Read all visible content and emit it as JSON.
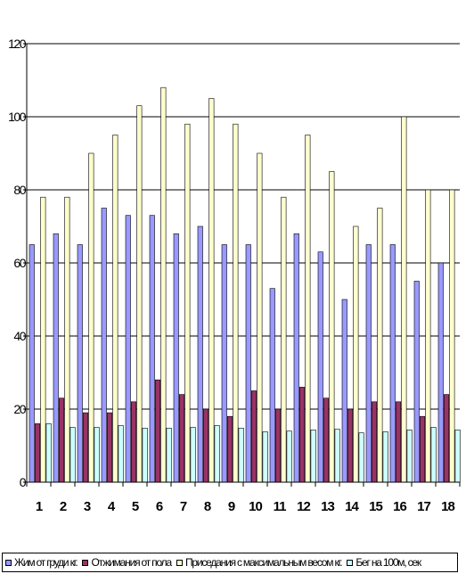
{
  "chart_data": {
    "type": "bar",
    "categories": [
      "1",
      "2",
      "3",
      "4",
      "5",
      "6",
      "7",
      "8",
      "9",
      "10",
      "11",
      "12",
      "13",
      "14",
      "15",
      "16",
      "17",
      "18"
    ],
    "series": [
      {
        "name": "Жим от груди кг.",
        "color": "#9999ff",
        "values": [
          65,
          68,
          65,
          75,
          73,
          73,
          68,
          70,
          65,
          65,
          53,
          68,
          63,
          50,
          65,
          65,
          55,
          60
        ]
      },
      {
        "name": "Отжимания от пола",
        "color": "#993366",
        "values": [
          16,
          23,
          19,
          19,
          22,
          28,
          24,
          20,
          18,
          25,
          20,
          26,
          23,
          20,
          22,
          22,
          18,
          24
        ]
      },
      {
        "name": "Приседания с максимальным весом кг.",
        "color": "#ffffcc",
        "values": [
          78,
          78,
          90,
          95,
          103,
          108,
          98,
          105,
          98,
          90,
          78,
          95,
          85,
          70,
          75,
          100,
          80,
          80
        ]
      },
      {
        "name": "Бег на 100м, сек",
        "color": "#ccffff",
        "values": [
          16,
          15,
          15,
          15.5,
          14.8,
          14.8,
          15,
          15.5,
          14.8,
          13.8,
          14,
          14.3,
          14.5,
          13.5,
          13.8,
          14.3,
          15,
          14.3
        ]
      }
    ],
    "ylim": [
      0,
      120
    ],
    "yticks": [
      "0",
      "20",
      "40",
      "60",
      "80",
      "100",
      "120"
    ],
    "grid": true,
    "legend_position": "bottom"
  }
}
